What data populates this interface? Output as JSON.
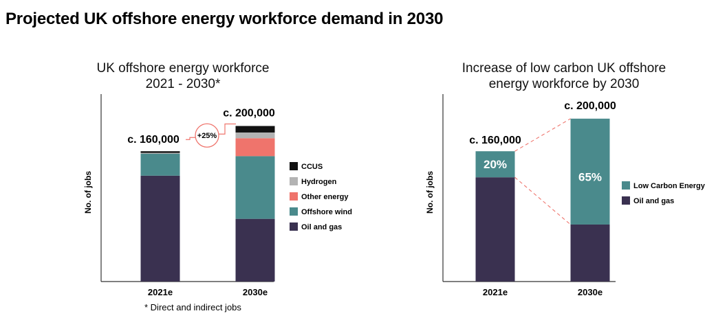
{
  "page_title": "Projected UK offshore energy workforce demand in 2030",
  "colors": {
    "ccus": "#111111",
    "hydrogen": "#b3b3b3",
    "other_energy": "#ef746c",
    "offshore_wind": "#4a8a8c",
    "oil_and_gas": "#3a3150",
    "low_carbon": "#4a8a8c",
    "axis": "#333333"
  },
  "chart_data": [
    {
      "type": "bar",
      "stacked": true,
      "title_line1": "UK offshore energy workforce",
      "title_line2": "2021 - 2030*",
      "ylabel": "No. of jobs",
      "xlabel": "",
      "ylim": [
        0,
        215000
      ],
      "categories": [
        "2021e",
        "2030e"
      ],
      "series": [
        {
          "name": "Oil and gas",
          "key": "oil_and_gas",
          "values": [
            130000,
            77000
          ]
        },
        {
          "name": "Offshore wind",
          "key": "offshore_wind",
          "values": [
            27000,
            77000
          ]
        },
        {
          "name": "Other energy",
          "key": "other_energy",
          "values": [
            0,
            22000
          ]
        },
        {
          "name": "Hydrogen",
          "key": "hydrogen",
          "values": [
            1000,
            7000
          ]
        },
        {
          "name": "CCUS",
          "key": "ccus",
          "values": [
            2000,
            8000
          ]
        }
      ],
      "legend_order": [
        "CCUS",
        "Hydrogen",
        "Other energy",
        "Offshore wind",
        "Oil and gas"
      ],
      "total_labels": [
        "c. 160,000",
        "c. 200,000"
      ],
      "growth_label": "+25%",
      "footnote": "* Direct and indirect jobs"
    },
    {
      "type": "bar",
      "stacked": true,
      "title_line1": "Increase of low carbon UK offshore",
      "title_line2": "energy workforce by 2030",
      "ylabel": "No. of jobs",
      "xlabel": "",
      "ylim": [
        0,
        215000
      ],
      "categories": [
        "2021e",
        "2030e"
      ],
      "series": [
        {
          "name": "Oil and gas",
          "key": "oil_and_gas",
          "values": [
            128000,
            70000
          ]
        },
        {
          "name": "Low Carbon Energy",
          "key": "low_carbon",
          "values": [
            32000,
            130000
          ]
        }
      ],
      "share_labels": [
        "20%",
        "65%"
      ],
      "legend_order": [
        "Low Carbon Energy",
        "Oil and gas"
      ],
      "total_labels": [
        "c. 160,000",
        "c. 200,000"
      ]
    }
  ]
}
